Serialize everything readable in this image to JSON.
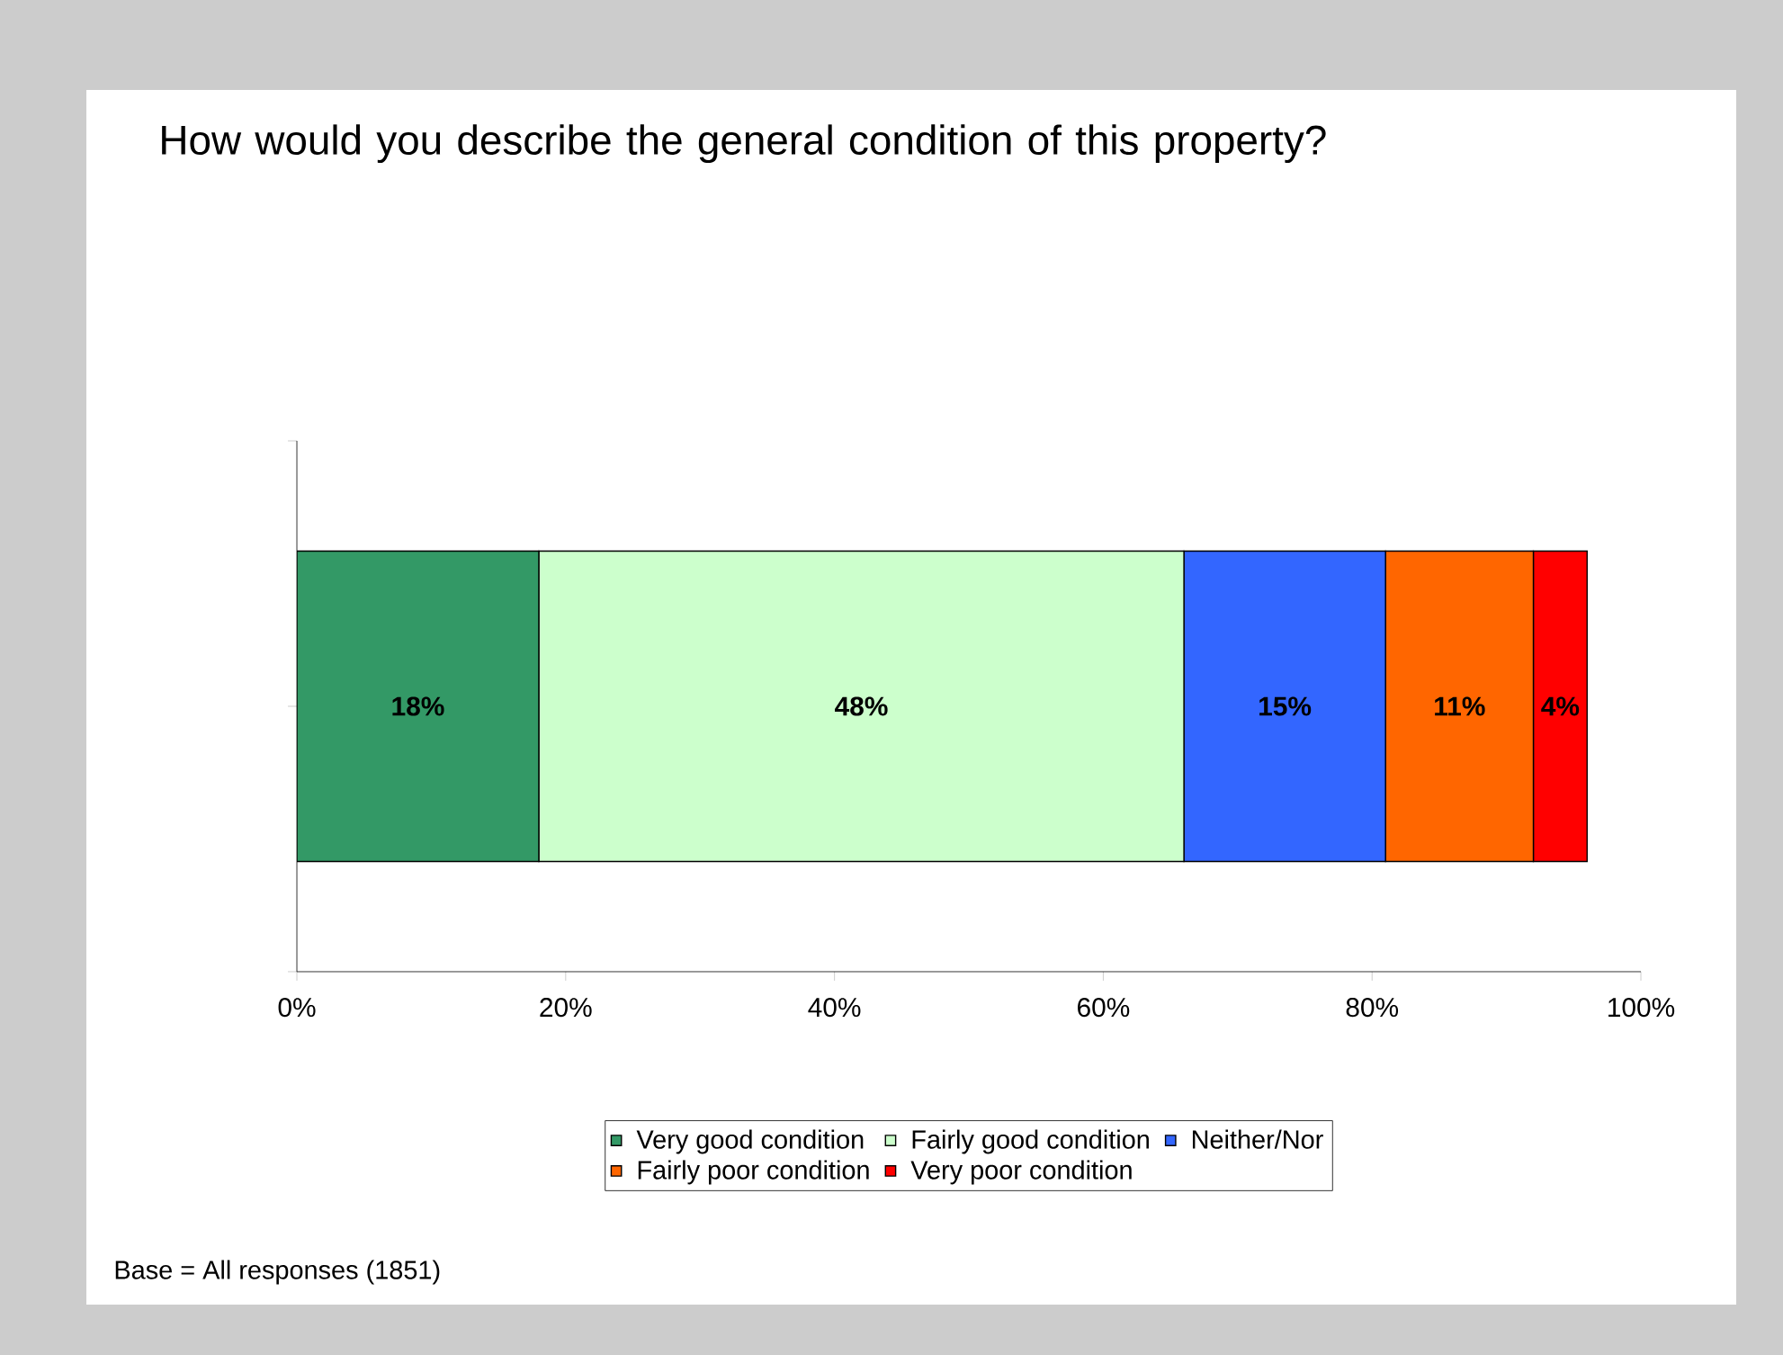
{
  "chart_data": {
    "type": "bar",
    "orientation": "horizontal",
    "stacked": true,
    "title": "How would you describe the general condition of this property?",
    "categories": [
      null
    ],
    "series": [
      {
        "name": "Very good condition",
        "color": "#339966",
        "values": [
          18
        ],
        "value_labels": [
          "18%"
        ]
      },
      {
        "name": "Fairly good condition",
        "color": "#ccffcc",
        "values": [
          48
        ],
        "value_labels": [
          "48%"
        ]
      },
      {
        "name": "Neither/Nor",
        "color": "#3366ff",
        "values": [
          15
        ],
        "value_labels": [
          "15%"
        ]
      },
      {
        "name": "Fairly poor condition",
        "color": "#ff6600",
        "values": [
          11
        ],
        "value_labels": [
          "11%"
        ]
      },
      {
        "name": "Very poor condition",
        "color": "#ff0000",
        "values": [
          4
        ],
        "value_labels": [
          "4%"
        ]
      }
    ],
    "xlim": [
      0,
      100
    ],
    "xticks": [
      {
        "value": 0,
        "label": "0%"
      },
      {
        "value": 20,
        "label": "20%"
      },
      {
        "value": 40,
        "label": "40%"
      },
      {
        "value": 60,
        "label": "60%"
      },
      {
        "value": 80,
        "label": "80%"
      },
      {
        "value": 100,
        "label": "100%"
      }
    ],
    "legend": "bottom",
    "grid": false,
    "annotations": [
      "Base = All responses (1851)"
    ]
  }
}
